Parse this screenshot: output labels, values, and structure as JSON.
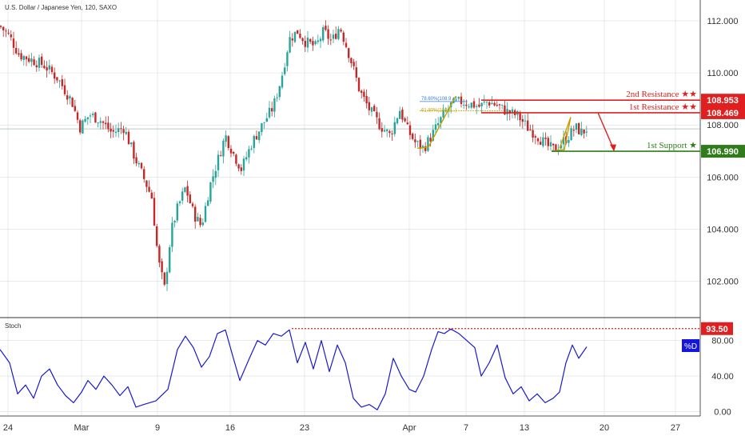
{
  "header": {
    "symbol_title": "U.S. Dollar / Japanese Yen, 120, SAXO",
    "stoch_title": "Stoch"
  },
  "colors": {
    "up": "#26a69a",
    "down": "#c62828",
    "resistance": "#e02020",
    "support": "#2e7d1a",
    "stoch_line": "#1a1acc",
    "fib": "#c8a000",
    "axis_text": "#333333",
    "grid": "#d8dde3"
  },
  "chart_data": [
    {
      "type": "candlestick",
      "title": "U.S. Dollar / Japanese Yen, 120, SAXO",
      "y_ticks": [
        "112.000",
        "110.000",
        "108.000",
        "106.000",
        "104.000",
        "102.000"
      ],
      "ylim": [
        100.6,
        112.8
      ],
      "x_ticks": [
        "24",
        "Mar",
        "9",
        "16",
        "23",
        "Apr",
        "7",
        "13",
        "20",
        "27"
      ],
      "last_price_line": 107.85,
      "price_path": [
        [
          0,
          111.8
        ],
        [
          12,
          111.4
        ],
        [
          24,
          110.7
        ],
        [
          40,
          110.5
        ],
        [
          55,
          110.3
        ],
        [
          72,
          109.8
        ],
        [
          90,
          108.9
        ],
        [
          100,
          107.9
        ],
        [
          112,
          108.4
        ],
        [
          125,
          108.2
        ],
        [
          140,
          107.7
        ],
        [
          155,
          107.9
        ],
        [
          168,
          106.8
        ],
        [
          182,
          105.8
        ],
        [
          190,
          105.2
        ],
        [
          198,
          102.8
        ],
        [
          206,
          101.7
        ],
        [
          214,
          103.9
        ],
        [
          222,
          104.8
        ],
        [
          232,
          105.6
        ],
        [
          242,
          104.6
        ],
        [
          252,
          104.1
        ],
        [
          262,
          105.6
        ],
        [
          272,
          106.6
        ],
        [
          282,
          107.6
        ],
        [
          292,
          106.9
        ],
        [
          302,
          106.3
        ],
        [
          315,
          107.3
        ],
        [
          328,
          108.0
        ],
        [
          342,
          108.7
        ],
        [
          352,
          109.8
        ],
        [
          362,
          111.3
        ],
        [
          372,
          111.6
        ],
        [
          382,
          111.2
        ],
        [
          395,
          111.0
        ],
        [
          405,
          111.6
        ],
        [
          415,
          111.2
        ],
        [
          425,
          111.8
        ],
        [
          438,
          110.6
        ],
        [
          450,
          109.3
        ],
        [
          462,
          108.6
        ],
        [
          475,
          108.0
        ],
        [
          488,
          107.6
        ],
        [
          500,
          108.6
        ],
        [
          510,
          107.8
        ],
        [
          520,
          107.3
        ],
        [
          530,
          107.1
        ],
        [
          542,
          107.7
        ],
        [
          553,
          108.3
        ],
        [
          565,
          108.8
        ],
        [
          577,
          108.9
        ],
        [
          590,
          108.8
        ],
        [
          600,
          108.7
        ],
        [
          610,
          108.9
        ],
        [
          622,
          108.75
        ],
        [
          635,
          108.5
        ],
        [
          648,
          108.35
        ],
        [
          660,
          107.9
        ],
        [
          672,
          107.6
        ],
        [
          684,
          107.2
        ],
        [
          693,
          107.05
        ],
        [
          702,
          107.3
        ],
        [
          712,
          107.6
        ],
        [
          720,
          107.9
        ],
        [
          728,
          107.7
        ],
        [
          734,
          107.85
        ]
      ],
      "levels": [
        {
          "name": "2nd Resistance",
          "label": "2nd Resistance ★★",
          "value": 108.953,
          "value_label": "108.953"
        },
        {
          "name": "1st Resistance",
          "label": "1st Resistance ★★",
          "value": 108.469,
          "value_label": "108.469"
        },
        {
          "name": "1st Support",
          "label": "1st Support ★",
          "value": 106.99,
          "value_label": "106.990"
        }
      ],
      "fib_labels": [
        "78.60%(108.9...)",
        "61.80%(108.5...)"
      ]
    },
    {
      "type": "line",
      "title": "Stoch",
      "y_ticks": [
        "80.00",
        "40.00",
        "0.00"
      ],
      "ylim": [
        -5,
        105
      ],
      "overbought_level": 93.5,
      "overbought_label": "93.50",
      "series_badge": "%D",
      "stoch_path": [
        [
          0,
          70
        ],
        [
          12,
          55
        ],
        [
          22,
          20
        ],
        [
          32,
          30
        ],
        [
          42,
          15
        ],
        [
          52,
          40
        ],
        [
          62,
          48
        ],
        [
          72,
          30
        ],
        [
          82,
          18
        ],
        [
          92,
          10
        ],
        [
          102,
          22
        ],
        [
          110,
          35
        ],
        [
          120,
          25
        ],
        [
          130,
          40
        ],
        [
          140,
          30
        ],
        [
          150,
          18
        ],
        [
          160,
          28
        ],
        [
          170,
          5
        ],
        [
          180,
          8
        ],
        [
          195,
          12
        ],
        [
          210,
          25
        ],
        [
          222,
          70
        ],
        [
          232,
          85
        ],
        [
          242,
          72
        ],
        [
          252,
          50
        ],
        [
          262,
          62
        ],
        [
          272,
          88
        ],
        [
          282,
          92
        ],
        [
          292,
          60
        ],
        [
          300,
          35
        ],
        [
          312,
          60
        ],
        [
          322,
          80
        ],
        [
          332,
          75
        ],
        [
          342,
          88
        ],
        [
          352,
          85
        ],
        [
          362,
          92
        ],
        [
          372,
          55
        ],
        [
          382,
          78
        ],
        [
          392,
          48
        ],
        [
          402,
          80
        ],
        [
          412,
          45
        ],
        [
          422,
          75
        ],
        [
          432,
          55
        ],
        [
          442,
          15
        ],
        [
          452,
          5
        ],
        [
          462,
          8
        ],
        [
          472,
          2
        ],
        [
          482,
          20
        ],
        [
          492,
          60
        ],
        [
          502,
          40
        ],
        [
          512,
          25
        ],
        [
          520,
          22
        ],
        [
          530,
          40
        ],
        [
          540,
          70
        ],
        [
          548,
          90
        ],
        [
          556,
          88
        ],
        [
          564,
          93
        ],
        [
          574,
          88
        ],
        [
          584,
          80
        ],
        [
          594,
          72
        ],
        [
          602,
          40
        ],
        [
          612,
          55
        ],
        [
          622,
          75
        ],
        [
          632,
          38
        ],
        [
          642,
          20
        ],
        [
          652,
          28
        ],
        [
          662,
          12
        ],
        [
          672,
          20
        ],
        [
          682,
          10
        ],
        [
          692,
          15
        ],
        [
          700,
          22
        ],
        [
          708,
          55
        ],
        [
          716,
          75
        ],
        [
          724,
          60
        ],
        [
          734,
          73
        ]
      ]
    }
  ]
}
